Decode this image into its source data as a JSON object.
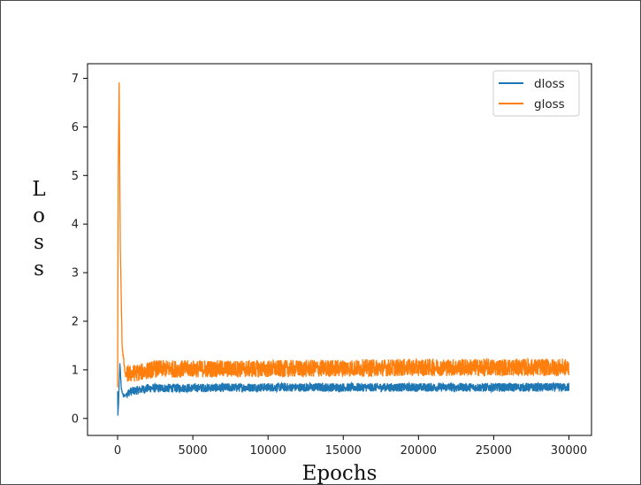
{
  "chart_data": {
    "type": "line",
    "title": "",
    "xlabel": "Epochs",
    "ylabel": "Loss",
    "xlim": [
      -2000,
      31500
    ],
    "ylim": [
      -0.35,
      7.3
    ],
    "xticks": [
      0,
      5000,
      10000,
      15000,
      20000,
      25000,
      30000
    ],
    "xtick_labels": [
      "0",
      "5000",
      "10000",
      "15000",
      "20000",
      "25000",
      "30000"
    ],
    "yticks": [
      0,
      1,
      2,
      3,
      4,
      5,
      6,
      7
    ],
    "ytick_labels": [
      "0",
      "1",
      "2",
      "3",
      "4",
      "5",
      "6",
      "7"
    ],
    "grid": false,
    "legend_position": "top-right",
    "x_end": 30000,
    "series": [
      {
        "name": "dloss",
        "color": "#1f77b4",
        "key_points": [
          [
            0,
            0.55
          ],
          [
            20,
            0.05
          ],
          [
            60,
            0.3
          ],
          [
            150,
            1.15
          ],
          [
            250,
            0.6
          ],
          [
            400,
            0.45
          ],
          [
            800,
            0.55
          ],
          [
            2000,
            0.62
          ],
          [
            10000,
            0.64
          ],
          [
            20000,
            0.64
          ],
          [
            30000,
            0.64
          ]
        ],
        "noise_band": 0.09
      },
      {
        "name": "gloss",
        "color": "#ff7f0e",
        "key_points": [
          [
            0,
            0.6
          ],
          [
            40,
            5.0
          ],
          [
            100,
            6.9
          ],
          [
            180,
            3.5
          ],
          [
            300,
            1.5
          ],
          [
            500,
            0.9
          ],
          [
            1500,
            0.95
          ],
          [
            2500,
            1.02
          ],
          [
            10000,
            1.02
          ],
          [
            20000,
            1.05
          ],
          [
            30000,
            1.05
          ]
        ],
        "noise_band": 0.18
      }
    ]
  }
}
